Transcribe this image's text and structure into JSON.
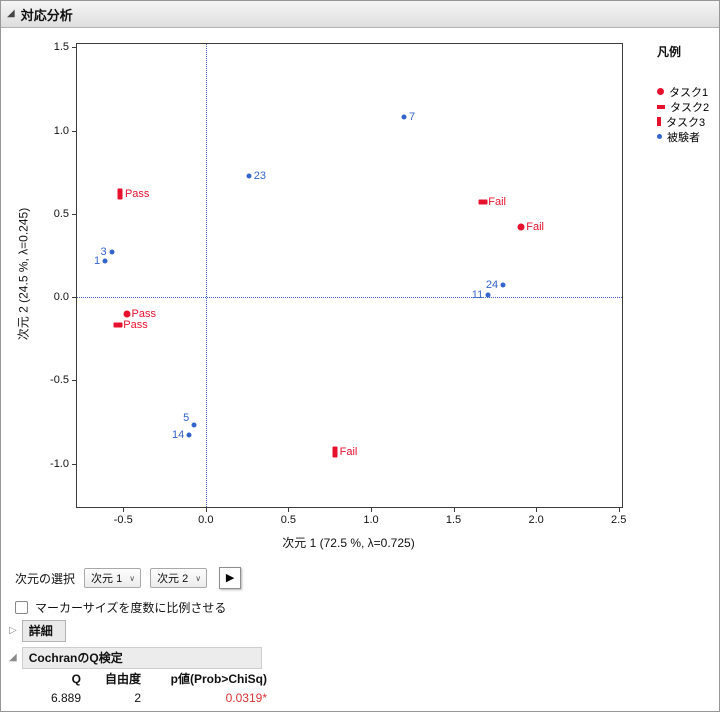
{
  "window": {
    "title": "対応分析"
  },
  "icons": {
    "disclosure_open": "◢",
    "disclosure_closed": "▷",
    "dropdown_chevron": "∨",
    "play_arrow": "▶"
  },
  "chart_data": {
    "type": "scatter",
    "xlabel": "次元 1 (72.5 %, λ=0.725)",
    "ylabel": "次元 2 (24.5 %, λ=0.245)",
    "xlim": [
      -0.78,
      2.52
    ],
    "ylim": [
      -1.26,
      1.52
    ],
    "grid": false,
    "legend_position": "right",
    "legend_title": "凡例",
    "ref_line_color": "#4463c8",
    "reference_lines": {
      "x": 0,
      "y": 0
    },
    "x_ticks": [
      {
        "v": -0.5,
        "label": "-0.5"
      },
      {
        "v": 0.0,
        "label": "0.0"
      },
      {
        "v": 0.5,
        "label": "0.5"
      },
      {
        "v": 1.0,
        "label": "1.0"
      },
      {
        "v": 1.5,
        "label": "1.5"
      },
      {
        "v": 2.0,
        "label": "2.0"
      },
      {
        "v": 2.5,
        "label": "2.5"
      }
    ],
    "y_ticks": [
      {
        "v": 1.5,
        "label": "1.5"
      },
      {
        "v": 1.0,
        "label": "1.0"
      },
      {
        "v": 0.5,
        "label": "0.5"
      },
      {
        "v": 0.0,
        "label": "0.0"
      },
      {
        "v": -0.5,
        "label": "-0.5"
      },
      {
        "v": -1.0,
        "label": "-1.0"
      }
    ],
    "series": [
      {
        "name": "タスク1",
        "marker": "circle",
        "color": "#e8112d",
        "points": [
          {
            "x": -0.48,
            "y": -0.1,
            "label": "Pass",
            "side": "right"
          },
          {
            "x": 1.91,
            "y": 0.42,
            "label": "Fail",
            "side": "right"
          }
        ]
      },
      {
        "name": "タスク2",
        "marker": "hbar",
        "color": "#e8112d",
        "points": [
          {
            "x": -0.53,
            "y": -0.17,
            "label": "Pass",
            "side": "right"
          },
          {
            "x": 1.68,
            "y": 0.57,
            "label": "Fail",
            "side": "right"
          }
        ]
      },
      {
        "name": "タスク3",
        "marker": "vbar",
        "color": "#e8112d",
        "points": [
          {
            "x": -0.52,
            "y": 0.62,
            "label": "Pass",
            "side": "right"
          },
          {
            "x": 0.78,
            "y": -0.93,
            "label": "Fail",
            "side": "right"
          }
        ]
      },
      {
        "name": "被験者",
        "marker": "dot",
        "color": "#3465cc",
        "points": [
          {
            "x": -0.57,
            "y": 0.27,
            "label": "3",
            "side": "left"
          },
          {
            "x": -0.61,
            "y": 0.22,
            "label": "1",
            "side": "left"
          },
          {
            "x": 0.26,
            "y": 0.73,
            "label": "23",
            "side": "right"
          },
          {
            "x": 1.2,
            "y": 1.08,
            "label": "7",
            "side": "right"
          },
          {
            "x": 1.8,
            "y": 0.07,
            "label": "24",
            "side": "left"
          },
          {
            "x": 1.71,
            "y": 0.01,
            "label": "11",
            "side": "left"
          },
          {
            "x": -0.07,
            "y": -0.77,
            "label": "5",
            "side": "left-up"
          },
          {
            "x": -0.1,
            "y": -0.83,
            "label": "14",
            "side": "left"
          }
        ]
      }
    ]
  },
  "controls": {
    "dimension_select_label": "次元の選択",
    "dim1_dropdown": "次元 1",
    "dim2_dropdown": "次元 2",
    "marker_size_checkbox_label": "マーカーサイズを度数に比例させる",
    "marker_size_checkbox_checked": false
  },
  "sections": {
    "details_label": "詳細",
    "cochran_title": "CochranのQ検定"
  },
  "cochran_table": {
    "headers": [
      "Q",
      "自由度",
      "p値(Prob>ChiSq)"
    ],
    "rows": [
      [
        "6.889",
        "2",
        "0.0319*"
      ]
    ],
    "p_value_color": "#d93535"
  }
}
